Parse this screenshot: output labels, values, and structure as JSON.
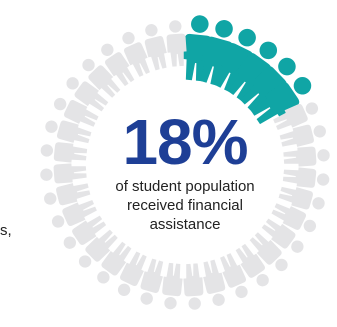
{
  "stat": {
    "value": "18%",
    "caption_lines": [
      "of student population",
      "received financial",
      "assistance"
    ]
  },
  "side_text": "s,",
  "colors": {
    "highlight": "#10a5a5",
    "base": "#e4e4e6",
    "value_text": "#1e3f96"
  },
  "chart_data": {
    "type": "pictograph",
    "total_icons": 36,
    "highlighted_icons": 6,
    "percent": 18,
    "icon": "person-icon"
  }
}
